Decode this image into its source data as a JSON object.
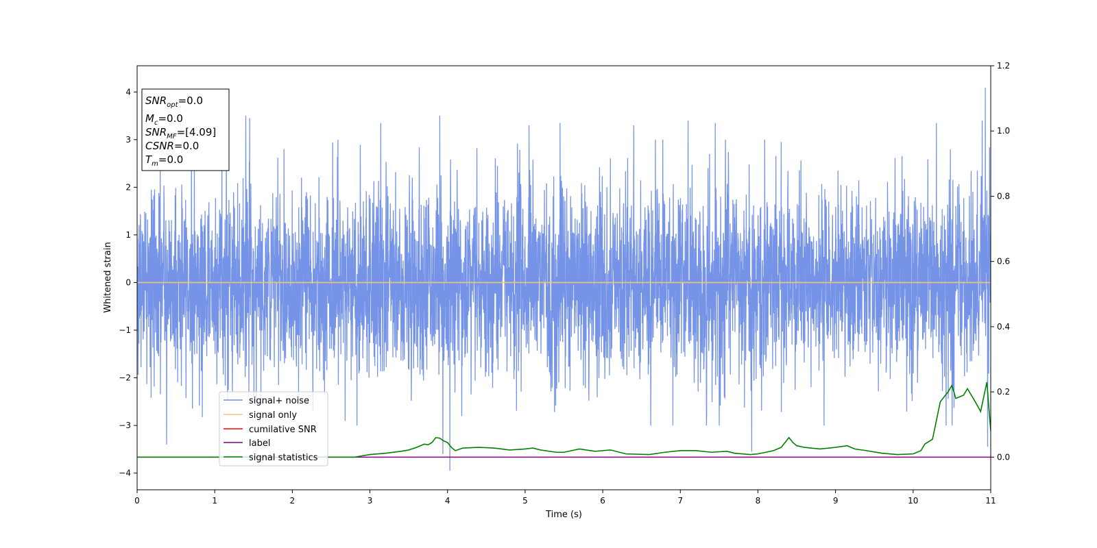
{
  "chart_data": {
    "type": "line",
    "xlabel": "Time (s)",
    "ylabel": "Whitened strain",
    "xlim": [
      0,
      11
    ],
    "ylim": [
      -4.35,
      4.55
    ],
    "y2lim": [
      -0.1,
      1.2
    ],
    "grid": false,
    "legend_position": "lower-left",
    "x_ticks": [
      0,
      1,
      2,
      3,
      4,
      5,
      6,
      7,
      8,
      9,
      10,
      11
    ],
    "y_ticks": [
      -4,
      -3,
      -2,
      -1,
      0,
      1,
      2,
      3,
      4
    ],
    "y2_ticks": [
      "0.0",
      "0.2",
      "0.4",
      "0.6",
      "0.8",
      "1.0",
      "1.2"
    ],
    "annotation": {
      "lines": [
        {
          "name": "SNR",
          "sub": "opt",
          "value": "=0.0"
        },
        {
          "name": "M",
          "sub": "c",
          "value": "=0.0"
        },
        {
          "name": "SNR",
          "sub": "MF",
          "value": "=[4.09]"
        },
        {
          "name": "CSNR",
          "sub": "",
          "value": "=0.0"
        },
        {
          "name": "T",
          "sub": "m",
          "value": "=0.0"
        }
      ]
    },
    "series": [
      {
        "name": "signal+ noise",
        "color": "#6f8ee6",
        "axis": "left",
        "description": "whitened noise, approx. unit variance, about ±2.5",
        "peaks": [
          {
            "x": 0.38,
            "y": -3.4
          },
          {
            "x": 1.15,
            "y": 3.4
          },
          {
            "x": 1.4,
            "y": 3.5
          },
          {
            "x": 1.45,
            "y": 3.45
          },
          {
            "x": 3.14,
            "y": 3.35
          },
          {
            "x": 3.9,
            "y": 3.5
          },
          {
            "x": 3.94,
            "y": -3.6
          },
          {
            "x": 4.03,
            "y": -3.95
          },
          {
            "x": 5.05,
            "y": 3.3
          },
          {
            "x": 5.45,
            "y": 3.35
          },
          {
            "x": 6.4,
            "y": 3.3
          },
          {
            "x": 7.1,
            "y": 3.4
          },
          {
            "x": 7.45,
            "y": 3.35
          },
          {
            "x": 7.92,
            "y": -3.55
          },
          {
            "x": 8.3,
            "y": 2.95
          },
          {
            "x": 10.3,
            "y": 3.35
          },
          {
            "x": 10.89,
            "y": 3.4
          },
          {
            "x": 10.93,
            "y": 4.09
          },
          {
            "x": 10.96,
            "y": -3.45
          }
        ]
      },
      {
        "name": "signal only",
        "color": "#f5c27a",
        "axis": "left",
        "x": [
          0,
          11
        ],
        "y": [
          0,
          0
        ]
      },
      {
        "name": "cumilative SNR",
        "color": "#ff0000",
        "axis": "right",
        "x": [],
        "y": []
      },
      {
        "name": "label",
        "color": "#800080",
        "axis": "right",
        "x": [
          0,
          11
        ],
        "y": [
          0,
          0
        ]
      },
      {
        "name": "signal statistics",
        "color": "#008000",
        "axis": "right",
        "x": [
          0,
          0.5,
          1.0,
          1.5,
          2.0,
          2.5,
          2.8,
          3.0,
          3.2,
          3.4,
          3.5,
          3.6,
          3.7,
          3.75,
          3.8,
          3.85,
          3.9,
          3.95,
          4.0,
          4.05,
          4.1,
          4.2,
          4.4,
          4.6,
          4.8,
          5.0,
          5.1,
          5.2,
          5.4,
          5.5,
          5.7,
          5.9,
          6.0,
          6.1,
          6.3,
          6.6,
          6.8,
          7.0,
          7.2,
          7.4,
          7.6,
          7.7,
          7.9,
          8.0,
          8.2,
          8.3,
          8.4,
          8.45,
          8.5,
          8.6,
          8.8,
          9.0,
          9.15,
          9.25,
          9.4,
          9.6,
          9.8,
          10.0,
          10.1,
          10.15,
          10.25,
          10.35,
          10.45,
          10.5,
          10.55,
          10.65,
          10.7,
          10.8,
          10.87,
          10.95,
          11.0
        ],
        "y": [
          0.0,
          0.0,
          0.0,
          0.0,
          0.0,
          0.0,
          0.0,
          0.008,
          0.012,
          0.018,
          0.022,
          0.03,
          0.04,
          0.038,
          0.045,
          0.06,
          0.058,
          0.05,
          0.045,
          0.03,
          0.02,
          0.028,
          0.03,
          0.028,
          0.022,
          0.025,
          0.028,
          0.022,
          0.015,
          0.015,
          0.025,
          0.018,
          0.02,
          0.022,
          0.01,
          0.008,
          0.015,
          0.02,
          0.02,
          0.015,
          0.018,
          0.012,
          0.008,
          0.01,
          0.02,
          0.03,
          0.06,
          0.045,
          0.035,
          0.03,
          0.025,
          0.03,
          0.035,
          0.025,
          0.02,
          0.012,
          0.008,
          0.01,
          0.02,
          0.04,
          0.055,
          0.17,
          0.2,
          0.22,
          0.18,
          0.19,
          0.21,
          0.17,
          0.14,
          0.23,
          0.08
        ]
      }
    ]
  }
}
